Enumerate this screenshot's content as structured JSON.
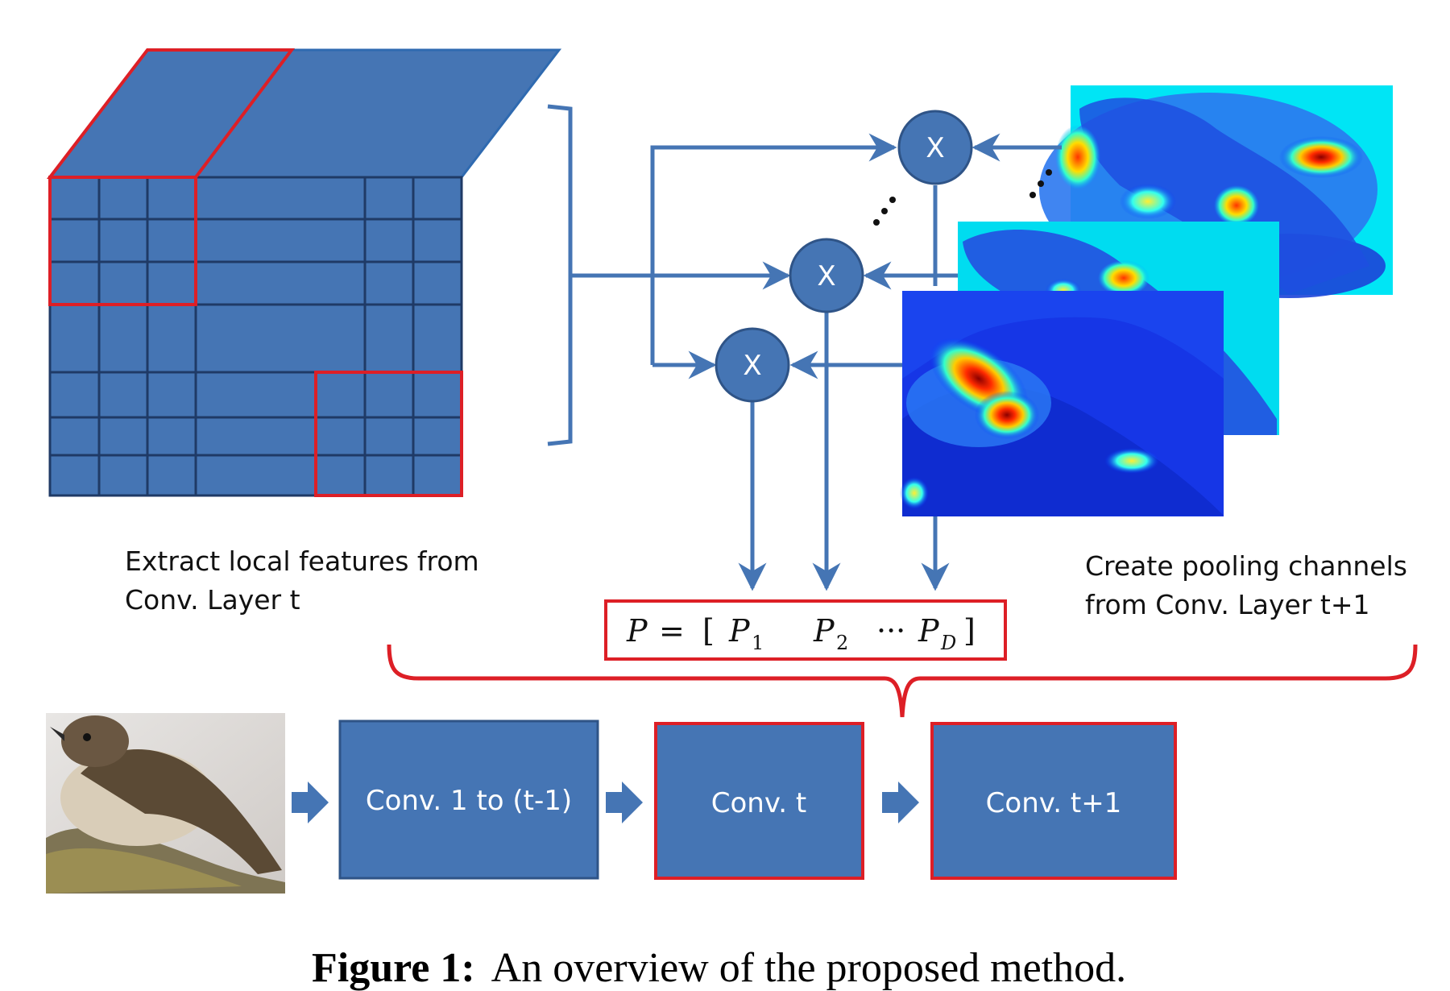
{
  "colors": {
    "blue": "#4575b4",
    "blue_stroke": "#2f5487",
    "red": "#dd1f26",
    "grid_line": "#1f3a66"
  },
  "left_label": [
    "Extract local features from",
    "Conv. Layer t"
  ],
  "right_label": [
    "Create pooling channels",
    "from Conv. Layer t+1"
  ],
  "multiplier_symbol": "X",
  "equation": {
    "lhs": "P",
    "equals": "=",
    "open": "[",
    "p": "P",
    "sub1": "1",
    "sub2": "2",
    "dots": "···",
    "subD": "D",
    "close": "]"
  },
  "pipeline": {
    "box1": "Conv. 1 to (t-1)",
    "box2": "Conv. t",
    "box3": "Conv. t+1"
  },
  "caption": {
    "label": "Figure 1:",
    "text": "An overview of the proposed method."
  }
}
